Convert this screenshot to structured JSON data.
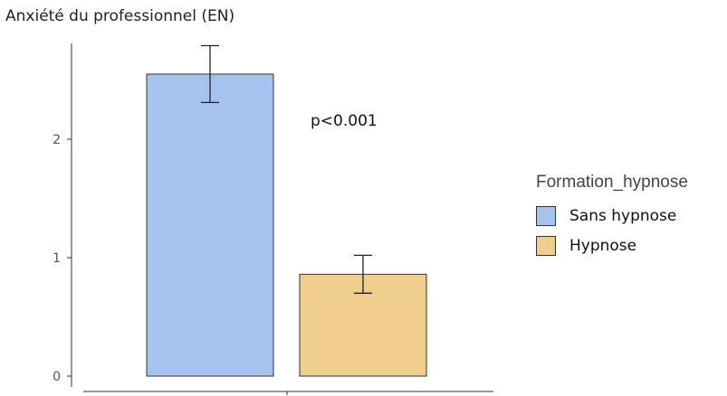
{
  "chart_data": {
    "type": "bar",
    "title": "",
    "ylabel": "Anxiété du professionnel (EN)",
    "xlabel": "",
    "categories": [
      "Sans hypnose",
      "Hypnose"
    ],
    "values": [
      2.55,
      0.86
    ],
    "error_low": [
      2.31,
      0.7
    ],
    "error_high": [
      2.79,
      1.02
    ],
    "colors": [
      "#a6c3f0",
      "#f0cf8e"
    ],
    "ylim": [
      0,
      2.85
    ],
    "yticks": [
      "0",
      "1",
      "2"
    ],
    "grid": false,
    "legend": {
      "title": "Formation_hypnose",
      "placement": "right",
      "entries": [
        "Sans hypnose",
        "Hypnose"
      ]
    },
    "annotations": [
      "p<0.001"
    ]
  }
}
